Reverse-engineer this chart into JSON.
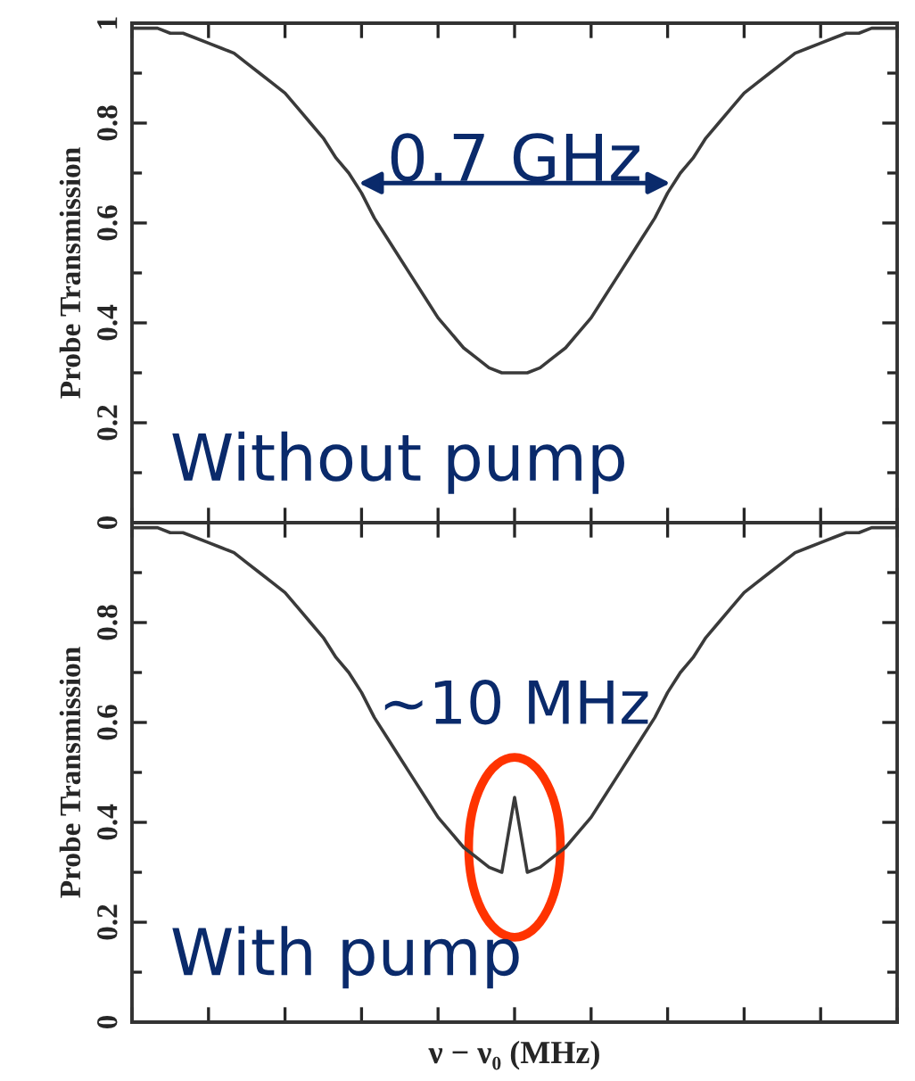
{
  "chart_data": [
    {
      "type": "line",
      "categories": [
        null,
        null,
        null,
        null,
        null,
        null,
        null,
        null,
        null,
        null,
        null,
        null,
        null,
        null,
        null,
        null,
        null,
        null,
        null,
        null,
        null,
        null,
        null,
        null,
        null,
        null,
        null,
        null,
        null,
        null,
        null,
        null,
        null,
        null,
        null,
        null,
        null,
        null,
        null,
        null,
        null,
        null,
        null,
        null,
        null,
        null,
        null,
        null,
        null,
        null,
        null,
        null,
        null,
        null,
        null,
        null,
        null,
        null,
        null,
        null,
        null
      ],
      "series": [
        {
          "color": "#3a3a3a",
          "values": [
            0.99,
            0.99,
            0.99,
            0.98,
            0.98,
            0.97,
            0.96,
            0.95,
            0.94,
            0.92,
            0.9,
            0.88,
            0.86,
            0.83,
            0.8,
            0.77,
            0.73,
            0.7,
            0.66,
            0.61,
            0.57,
            0.53,
            0.49,
            0.45,
            0.41,
            0.38,
            0.35,
            0.33,
            0.31,
            0.3,
            0.3,
            0.3,
            0.31,
            0.33,
            0.35,
            0.38,
            0.41,
            0.45,
            0.49,
            0.53,
            0.57,
            0.61,
            0.66,
            0.7,
            0.73,
            0.77,
            0.8,
            0.83,
            0.86,
            0.88,
            0.9,
            0.92,
            0.94,
            0.95,
            0.96,
            0.97,
            0.98,
            0.98,
            0.99,
            0.99,
            0.99
          ]
        }
      ],
      "ylabel": "Probe Transmission",
      "ylim": [
        0,
        1
      ],
      "yticks": [
        0,
        0.2,
        0.4,
        0.6,
        0.8,
        1
      ],
      "tick_labels": "y",
      "grid": false,
      "annotations": [
        "0.7 GHz",
        "Without pump"
      ]
    },
    {
      "type": "line",
      "categories": [
        null,
        null,
        null,
        null,
        null,
        null,
        null,
        null,
        null,
        null,
        null,
        null,
        null,
        null,
        null,
        null,
        null,
        null,
        null,
        null,
        null,
        null,
        null,
        null,
        null,
        null,
        null,
        null,
        null,
        null,
        null,
        null,
        null,
        null,
        null,
        null,
        null,
        null,
        null,
        null,
        null,
        null,
        null,
        null,
        null,
        null,
        null,
        null,
        null,
        null,
        null,
        null,
        null,
        null,
        null,
        null,
        null,
        null,
        null,
        null,
        null
      ],
      "series": [
        {
          "color": "#3a3a3a",
          "values": [
            0.99,
            0.99,
            0.99,
            0.98,
            0.98,
            0.97,
            0.96,
            0.95,
            0.94,
            0.92,
            0.9,
            0.88,
            0.86,
            0.83,
            0.8,
            0.77,
            0.73,
            0.7,
            0.66,
            0.61,
            0.57,
            0.53,
            0.49,
            0.45,
            0.41,
            0.38,
            0.35,
            0.33,
            0.31,
            0.3,
            0.45,
            0.3,
            0.31,
            0.33,
            0.35,
            0.38,
            0.41,
            0.45,
            0.49,
            0.53,
            0.57,
            0.61,
            0.66,
            0.7,
            0.73,
            0.77,
            0.8,
            0.83,
            0.86,
            0.88,
            0.9,
            0.92,
            0.94,
            0.95,
            0.96,
            0.97,
            0.98,
            0.98,
            0.99,
            0.99,
            0.99
          ]
        }
      ],
      "xlabel": "ν − ν₀ (MHz)",
      "ylabel": "Probe Transmission",
      "ylim": [
        0,
        1
      ],
      "yticks": [
        0,
        0.2,
        0.4,
        0.6,
        0.8,
        {
          "value": 1,
          "label": null
        }
      ],
      "tick_labels": "y",
      "grid": false,
      "annotations": [
        "~10 MHz",
        "With pump"
      ]
    }
  ]
}
